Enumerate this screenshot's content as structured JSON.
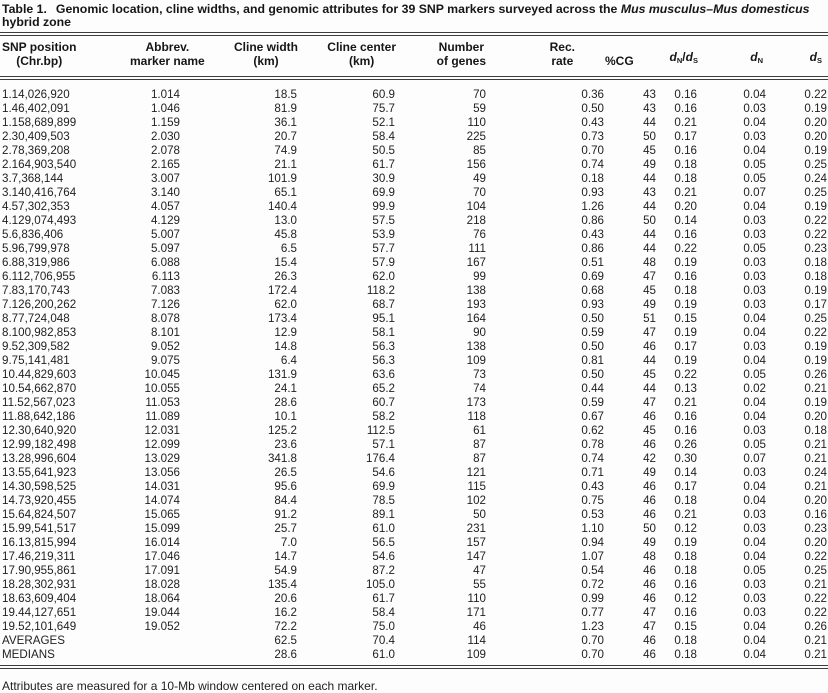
{
  "title": {
    "label": "Table 1.",
    "main": "Genomic location, cline widths, and genomic attributes for 39 SNP markers surveyed across the ",
    "species": "Mus musculus–Mus domesticus",
    "tail": "hybrid zone"
  },
  "header": {
    "snp": {
      "l1": "SNP position",
      "l2": "(Chr.bp)"
    },
    "abbrev": {
      "l1": "Abbrev.",
      "l2": "marker name"
    },
    "cline_width": {
      "l1": "Cline width",
      "l2": "(km)"
    },
    "cline_center": {
      "l1": "Cline center",
      "l2": "(km)"
    },
    "genes": {
      "l1": "Number",
      "l2": "of genes"
    },
    "rec": {
      "l1": "Rec.",
      "l2": "rate"
    },
    "cg": "%CG",
    "d": "d",
    "subN": "N",
    "subS": "S",
    "slash": "/"
  },
  "rows": [
    [
      "1.14,026,920",
      "1.014",
      "18.5",
      "60.9",
      "70",
      "0.36",
      "43",
      "0.16",
      "0.04",
      "0.22"
    ],
    [
      "1.46,402,091",
      "1.046",
      "81.9",
      "75.7",
      "59",
      "0.50",
      "43",
      "0.16",
      "0.03",
      "0.19"
    ],
    [
      "1.158,689,899",
      "1.159",
      "36.1",
      "52.1",
      "110",
      "0.43",
      "44",
      "0.21",
      "0.04",
      "0.20"
    ],
    [
      "2.30,409,503",
      "2.030",
      "20.7",
      "58.4",
      "225",
      "0.73",
      "50",
      "0.17",
      "0.03",
      "0.20"
    ],
    [
      "2.78,369,208",
      "2.078",
      "74.9",
      "50.5",
      "85",
      "0.70",
      "45",
      "0.16",
      "0.04",
      "0.19"
    ],
    [
      "2.164,903,540",
      "2.165",
      "21.1",
      "61.7",
      "156",
      "0.74",
      "49",
      "0.18",
      "0.05",
      "0.25"
    ],
    [
      "3.7,368,144",
      "3.007",
      "101.9",
      "30.9",
      "49",
      "0.18",
      "44",
      "0.18",
      "0.05",
      "0.24"
    ],
    [
      "3.140,416,764",
      "3.140",
      "65.1",
      "69.9",
      "70",
      "0.93",
      "43",
      "0.21",
      "0.07",
      "0.25"
    ],
    [
      "4.57,302,353",
      "4.057",
      "140.4",
      "99.9",
      "104",
      "1.26",
      "44",
      "0.20",
      "0.04",
      "0.19"
    ],
    [
      "4.129,074,493",
      "4.129",
      "13.0",
      "57.5",
      "218",
      "0.86",
      "50",
      "0.14",
      "0.03",
      "0.22"
    ],
    [
      "5.6,836,406",
      "5.007",
      "45.8",
      "53.9",
      "76",
      "0.43",
      "44",
      "0.16",
      "0.03",
      "0.22"
    ],
    [
      "5.96,799,978",
      "5.097",
      "6.5",
      "57.7",
      "111",
      "0.86",
      "44",
      "0.22",
      "0.05",
      "0.23"
    ],
    [
      "6.88,319,986",
      "6.088",
      "15.4",
      "57.9",
      "167",
      "0.51",
      "48",
      "0.19",
      "0.03",
      "0.18"
    ],
    [
      "6.112,706,955",
      "6.113",
      "26.3",
      "62.0",
      "99",
      "0.69",
      "47",
      "0.16",
      "0.03",
      "0.18"
    ],
    [
      "7.83,170,743",
      "7.083",
      "172.4",
      "118.2",
      "138",
      "0.68",
      "45",
      "0.18",
      "0.03",
      "0.19"
    ],
    [
      "7.126,200,262",
      "7.126",
      "62.0",
      "68.7",
      "193",
      "0.93",
      "49",
      "0.19",
      "0.03",
      "0.17"
    ],
    [
      "8.77,724,048",
      "8.078",
      "173.4",
      "95.1",
      "164",
      "0.50",
      "51",
      "0.15",
      "0.04",
      "0.25"
    ],
    [
      "8.100,982,853",
      "8.101",
      "12.9",
      "58.1",
      "90",
      "0.59",
      "47",
      "0.19",
      "0.04",
      "0.22"
    ],
    [
      "9.52,309,582",
      "9.052",
      "14.8",
      "56.3",
      "138",
      "0.50",
      "46",
      "0.17",
      "0.03",
      "0.19"
    ],
    [
      "9.75,141,481",
      "9.075",
      "6.4",
      "56.3",
      "109",
      "0.81",
      "44",
      "0.19",
      "0.04",
      "0.19"
    ],
    [
      "10.44,829,603",
      "10.045",
      "131.9",
      "63.6",
      "73",
      "0.50",
      "45",
      "0.22",
      "0.05",
      "0.26"
    ],
    [
      "10.54,662,870",
      "10.055",
      "24.1",
      "65.2",
      "74",
      "0.44",
      "44",
      "0.13",
      "0.02",
      "0.21"
    ],
    [
      "11.52,567,023",
      "11.053",
      "28.6",
      "60.7",
      "173",
      "0.59",
      "47",
      "0.21",
      "0.04",
      "0.19"
    ],
    [
      "11.88,642,186",
      "11.089",
      "10.1",
      "58.2",
      "118",
      "0.67",
      "46",
      "0.16",
      "0.04",
      "0.20"
    ],
    [
      "12.30,640,920",
      "12.031",
      "125.2",
      "112.5",
      "61",
      "0.62",
      "45",
      "0.16",
      "0.03",
      "0.18"
    ],
    [
      "12.99,182,498",
      "12.099",
      "23.6",
      "57.1",
      "87",
      "0.78",
      "46",
      "0.26",
      "0.05",
      "0.21"
    ],
    [
      "13.28,996,604",
      "13.029",
      "341.8",
      "176.4",
      "87",
      "0.74",
      "42",
      "0.30",
      "0.07",
      "0.21"
    ],
    [
      "13.55,641,923",
      "13.056",
      "26.5",
      "54.6",
      "121",
      "0.71",
      "49",
      "0.14",
      "0.03",
      "0.24"
    ],
    [
      "14.30,598,525",
      "14.031",
      "95.6",
      "69.9",
      "115",
      "0.43",
      "46",
      "0.17",
      "0.04",
      "0.21"
    ],
    [
      "14.73,920,455",
      "14.074",
      "84.4",
      "78.5",
      "102",
      "0.75",
      "46",
      "0.18",
      "0.04",
      "0.20"
    ],
    [
      "15.64,824,507",
      "15.065",
      "91.2",
      "89.1",
      "50",
      "0.53",
      "46",
      "0.21",
      "0.03",
      "0.16"
    ],
    [
      "15.99,541,517",
      "15.099",
      "25.7",
      "61.0",
      "231",
      "1.10",
      "50",
      "0.12",
      "0.03",
      "0.23"
    ],
    [
      "16.13,815,994",
      "16.014",
      "7.0",
      "56.5",
      "157",
      "0.94",
      "49",
      "0.19",
      "0.04",
      "0.20"
    ],
    [
      "17.46,219,311",
      "17.046",
      "14.7",
      "54.6",
      "147",
      "1.07",
      "48",
      "0.18",
      "0.04",
      "0.22"
    ],
    [
      "17.90,955,861",
      "17.091",
      "54.9",
      "87.2",
      "47",
      "0.54",
      "46",
      "0.18",
      "0.05",
      "0.25"
    ],
    [
      "18.28,302,931",
      "18.028",
      "135.4",
      "105.0",
      "55",
      "0.72",
      "46",
      "0.16",
      "0.03",
      "0.21"
    ],
    [
      "18.63,609,404",
      "18.064",
      "20.6",
      "61.7",
      "110",
      "0.99",
      "46",
      "0.12",
      "0.03",
      "0.22"
    ],
    [
      "19.44,127,651",
      "19.044",
      "16.2",
      "58.4",
      "171",
      "0.77",
      "47",
      "0.16",
      "0.03",
      "0.22"
    ],
    [
      "19.52,101,649",
      "19.052",
      "72.2",
      "75.0",
      "46",
      "1.23",
      "47",
      "0.15",
      "0.04",
      "0.26"
    ],
    [
      "AVERAGES",
      "",
      "62.5",
      "70.4",
      "114",
      "0.70",
      "46",
      "0.18",
      "0.04",
      "0.21"
    ],
    [
      "MEDIANS",
      "",
      "28.6",
      "61.0",
      "109",
      "0.70",
      "46",
      "0.18",
      "0.04",
      "0.21"
    ]
  ],
  "footnote": "Attributes are measured for a 10-Mb window centered on each marker."
}
